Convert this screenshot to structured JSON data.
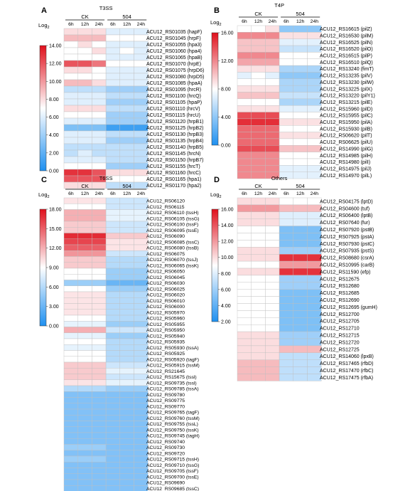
{
  "colors": {
    "high": "#e0101c",
    "mid": "#ffffff",
    "low": "#1e90f0",
    "cell_border": "#bfbfbf"
  },
  "chart_data": [
    {
      "type": "heatmap",
      "panel": "A",
      "title": "T3SS",
      "groups": [
        "CK",
        "504"
      ],
      "columns": [
        "6h",
        "12h",
        "24h",
        "6h",
        "12h",
        "24h"
      ],
      "legend_title": "Log2",
      "scale_min": 0,
      "scale_max": 14,
      "legend_ticks": [
        "14.00",
        "12.00",
        "10.00",
        "8.00",
        "6.00",
        "4.00",
        "2.00",
        "0.00"
      ],
      "rows": [
        "ACU12_RS01035 (hapF)",
        "ACU12_RS01045 (hrpF)",
        "ACU12_RS01055 (hpa3)",
        "ACU12_RS01060 (hpa4)",
        "ACU12_RS01065 (hpaB)",
        "ACU12_RS01070 (hrpE)",
        "ACU12_RS01075 (hrpD6)",
        "ACU12_RS01080 (hrpD5)",
        "ACU12_RS01085 (hpaA)",
        "ACU12_RS01095 (hrcR)",
        "ACU12_RS01100 (hrcQ)",
        "ACU12_RS01105 (hpaP)",
        "ACU12_RS01110 (hrcV)",
        "ACU12_RS01115 (hrcU)",
        "ACU12_RS01120 (hrpB1)",
        "ACU12_RS01125 (hrpB2)",
        "ACU12_RS01130 (hrpB3)",
        "ACU12_RS01135 (hrpB4)",
        "ACU12_RS01140 (hrpB5)",
        "ACU12_RS01145 (hrcN)",
        "ACU12_RS01150 (hrpB7)",
        "ACU12_RS01155 (hrcT)",
        "ACU12_RS01160 (hrcC)",
        "ACU12_RS01165 (hpa1)",
        "ACU12_RS01170 (hpa2)"
      ],
      "values": [
        [
          8,
          8,
          8,
          6,
          6,
          6
        ],
        [
          9,
          9,
          9,
          7,
          7,
          7
        ],
        [
          7,
          8,
          7,
          6,
          6,
          6
        ],
        [
          7,
          7,
          8,
          6,
          7,
          6
        ],
        [
          7,
          7,
          7,
          6,
          6,
          6
        ],
        [
          12,
          12,
          11,
          7,
          7,
          7
        ],
        [
          8,
          8,
          7,
          6,
          6,
          6
        ],
        [
          7,
          7,
          7,
          6,
          6,
          6
        ],
        [
          9,
          9,
          8,
          6,
          6,
          6
        ],
        [
          5,
          5,
          5,
          4,
          4,
          4
        ],
        [
          6,
          6,
          6,
          5,
          5,
          5
        ],
        [
          6,
          6,
          6,
          4,
          4,
          4
        ],
        [
          8,
          8,
          8,
          5,
          5,
          5
        ],
        [
          7,
          7,
          7,
          4,
          4,
          4
        ],
        [
          6,
          6,
          6,
          4,
          4,
          4
        ],
        [
          3,
          3,
          3,
          1,
          1,
          1
        ],
        [
          6,
          6,
          6,
          5,
          5,
          5
        ],
        [
          6,
          6,
          6,
          4,
          4,
          4
        ],
        [
          5,
          5,
          5,
          5,
          5,
          5
        ],
        [
          5,
          6,
          5,
          5,
          5,
          5
        ],
        [
          6,
          6,
          6,
          5,
          5,
          5
        ],
        [
          7,
          7,
          7,
          4,
          4,
          4
        ],
        [
          13,
          13,
          12,
          8,
          8,
          8
        ],
        [
          12,
          12,
          12,
          7,
          7,
          7
        ],
        [
          8,
          8,
          8,
          5,
          5,
          5
        ]
      ]
    },
    {
      "type": "heatmap",
      "panel": "B",
      "title": "T4P",
      "groups": [
        "CK",
        "504"
      ],
      "columns": [
        "6h",
        "12h",
        "24h",
        "6h",
        "12h",
        "24h"
      ],
      "legend_title": "Log2",
      "scale_min": 0,
      "scale_max": 16,
      "legend_ticks": [
        "16.00",
        "12.00",
        "8.00",
        "4.00",
        "0.00"
      ],
      "rows": [
        "ACU12_RS16615 (pilZ)",
        "ACU12_RS16530 (pilM)",
        "ACU12_RS16525 (pilN)",
        "ACU12_RS16520 (pilO)",
        "ACU12_RS16515 (pilP)",
        "ACU12_RS16510 (pilQ)",
        "ACU12_RS13240 (fimT)",
        "ACU12_RS13235 (pilV)",
        "ACU12_RS13230 (pilW)",
        "ACU12_RS13225 (pilX)",
        "ACU12_RS13220 (pilY1)",
        "ACU12_RS13215 (pilE)",
        "ACU12_RS15960 (pilD)",
        "ACU12_RS15955 (pilC)",
        "ACU12_RS15950 (pilA)",
        "ACU12_RS15930 (pilB)",
        "ACU12_RS06620 (pilT)",
        "ACU12_RS06625 (pilU)",
        "ACU12_RS14990 (pilG)",
        "ACU12_RS14985 (pilH)",
        "ACU12_RS14980 (pilI)",
        "ACU12_RS14975 (pilJ)",
        "ACU12_RS14970 (pilL)"
      ],
      "values": [
        [
          8,
          8,
          9,
          4,
          4,
          4
        ],
        [
          12,
          12,
          12,
          9,
          9,
          9
        ],
        [
          10,
          10,
          10,
          7,
          7,
          7
        ],
        [
          10,
          10,
          10,
          6,
          6,
          6
        ],
        [
          12,
          12,
          12,
          8,
          8,
          8
        ],
        [
          11,
          11,
          11,
          8,
          8,
          8
        ],
        [
          9,
          9,
          9,
          5,
          5,
          5
        ],
        [
          7,
          8,
          7,
          4,
          4,
          4
        ],
        [
          8,
          8,
          8,
          5,
          5,
          5
        ],
        [
          9,
          9,
          9,
          5,
          5,
          5
        ],
        [
          10,
          10,
          10,
          6,
          6,
          6
        ],
        [
          8,
          8,
          8,
          5,
          5,
          5
        ],
        [
          9,
          9,
          9,
          7,
          7,
          7
        ],
        [
          14,
          14,
          14,
          8,
          8,
          8
        ],
        [
          15,
          15,
          15,
          9,
          9,
          9
        ],
        [
          13,
          13,
          13,
          8,
          8,
          8
        ],
        [
          13,
          13,
          13,
          9,
          9,
          9
        ],
        [
          13,
          13,
          13,
          8,
          8,
          8
        ],
        [
          14,
          14,
          14,
          10,
          10,
          10
        ],
        [
          12,
          12,
          12,
          8,
          8,
          8
        ],
        [
          12,
          12,
          12,
          8,
          8,
          8
        ],
        [
          12,
          12,
          12,
          7,
          7,
          7
        ],
        [
          12,
          12,
          12,
          7,
          7,
          7
        ]
      ]
    },
    {
      "type": "heatmap",
      "panel": "C",
      "title": "T6SS",
      "groups": [
        "CK",
        "504"
      ],
      "columns": [
        "6h",
        "12h",
        "24h",
        "6h",
        "12h",
        "24h"
      ],
      "legend_title": "Log2",
      "scale_min": 0,
      "scale_max": 18,
      "legend_ticks": [
        "18.00",
        "15.00",
        "12.00",
        "9.00",
        "6.00",
        "3.00",
        "0.00"
      ],
      "rows": [
        "ACU12_RS06120",
        "ACU12_RS06115",
        "ACU12_RS06110 (tssH)",
        "ACU12_RS06105 (tssG)",
        "ACU12_RS06100 (tssF)",
        "ACU12_RS06095 (tssE)",
        "ACU12_RS06090",
        "ACU12_RS06085 (tssC)",
        "ACU12_RS06080 (tssB)",
        "ACU12_RS06075",
        "ACU12_RS06070 (tssJ)",
        "ACU12_RS06065 (tssK)",
        "ACU12_RS06050",
        "ACU12_RS06045",
        "ACU12_RS06030",
        "ACU12_RS06025",
        "ACU12_RS06020",
        "ACU12_RS06010",
        "ACU12_RS06000",
        "ACU12_RS05970",
        "ACU12_RS05960",
        "ACU12_RS05955",
        "ACU12_RS05950",
        "ACU12_RS05940",
        "ACU12_RS05935",
        "ACU12_RS05930 (tssA)",
        "ACU12_RS05925",
        "ACU12_RS05920 (tagF)",
        "ACU12_RS05915 (tssM)",
        "ACU12_RS21645",
        "ACU12_RS15675 (tssl)",
        "ACU12_RS09735 (tssl)",
        "ACU12_RS09785 (tssA)",
        "ACU12_RS09780",
        "ACU12_RS09775",
        "ACU12_RS09770",
        "ACU12_RS09765 (tagF)",
        "ACU12_RS09760 (tssM)",
        "ACU12_RS09755 (tssL)",
        "ACU12_RS09750 (tssK)",
        "ACU12_RS09745 (tagH)",
        "ACU12_RS09740",
        "ACU12_RS09730",
        "ACU12_RS09720",
        "ACU12_RS09715 (tssH)",
        "ACU12_RS09710 (tssG)",
        "ACU12_RS09705 (tssF)",
        "ACU12_RS09700 (tssE)",
        "ACU12_RS09690",
        "ACU12_RS09685 (tssC)",
        "ACU12_RS09680 (tssB)",
        "ACU12_RS09675"
      ],
      "values": [
        [
          10,
          10,
          10,
          7,
          7,
          7
        ],
        [
          9,
          9,
          9,
          7,
          7,
          7
        ],
        [
          12,
          12,
          12,
          8,
          8,
          8
        ],
        [
          12,
          12,
          12,
          8,
          8,
          8
        ],
        [
          11,
          11,
          11,
          7,
          7,
          7
        ],
        [
          11,
          11,
          11,
          7,
          7,
          7
        ],
        [
          17,
          17,
          17,
          11,
          11,
          11
        ],
        [
          16,
          16,
          16,
          10,
          10,
          10
        ],
        [
          15,
          15,
          15,
          10,
          10,
          10
        ],
        [
          13,
          13,
          13,
          7,
          7,
          7
        ],
        [
          11,
          11,
          11,
          6,
          6,
          6
        ],
        [
          11,
          11,
          11,
          6,
          6,
          6
        ],
        [
          9,
          9,
          9,
          5,
          5,
          5
        ],
        [
          9,
          9,
          9,
          5,
          5,
          5
        ],
        [
          5,
          5,
          5,
          3,
          3,
          3
        ],
        [
          9,
          9,
          9,
          5,
          5,
          5
        ],
        [
          10,
          10,
          10,
          6,
          6,
          6
        ],
        [
          10,
          10,
          10,
          6,
          6,
          6
        ],
        [
          10,
          10,
          10,
          6,
          6,
          6
        ],
        [
          10,
          10,
          10,
          6,
          6,
          6
        ],
        [
          9,
          9,
          9,
          6,
          6,
          6
        ],
        [
          8,
          8,
          8,
          5,
          5,
          5
        ],
        [
          12,
          12,
          12,
          7,
          7,
          7
        ],
        [
          8,
          8,
          8,
          5,
          5,
          5
        ],
        [
          9,
          9,
          9,
          6,
          6,
          6
        ],
        [
          8,
          8,
          8,
          6,
          6,
          6
        ],
        [
          9,
          9,
          9,
          6,
          6,
          6
        ],
        [
          9,
          9,
          9,
          6,
          6,
          6
        ],
        [
          11,
          11,
          11,
          7,
          7,
          7
        ],
        [
          11,
          11,
          11,
          8,
          8,
          8
        ],
        [
          11,
          11,
          11,
          7,
          7,
          7
        ],
        [
          10,
          10,
          10,
          8,
          8,
          8
        ],
        [
          6,
          6,
          6,
          5,
          5,
          5
        ],
        [
          4,
          4,
          4,
          4,
          4,
          4
        ],
        [
          4,
          4,
          4,
          4,
          4,
          4
        ],
        [
          4,
          4,
          4,
          4,
          4,
          4
        ],
        [
          4,
          4,
          4,
          4,
          4,
          4
        ],
        [
          4,
          4,
          4,
          4,
          4,
          4
        ],
        [
          4,
          4,
          4,
          4,
          4,
          4
        ],
        [
          4,
          4,
          4,
          4,
          4,
          4
        ],
        [
          4,
          4,
          4,
          4,
          4,
          4
        ],
        [
          4,
          4,
          4,
          4,
          4,
          4
        ],
        [
          5,
          5,
          5,
          4,
          4,
          4
        ],
        [
          4,
          4,
          4,
          4,
          4,
          4
        ],
        [
          5,
          5,
          5,
          4,
          4,
          4
        ],
        [
          4,
          4,
          4,
          4,
          4,
          4
        ],
        [
          4,
          4,
          4,
          4,
          4,
          4
        ],
        [
          4,
          4,
          4,
          4,
          4,
          4
        ],
        [
          4,
          4,
          4,
          4,
          4,
          4
        ],
        [
          4,
          4,
          4,
          4,
          4,
          4
        ],
        [
          4,
          4,
          4,
          4,
          4,
          4
        ],
        [
          4,
          4,
          4,
          4,
          4,
          4
        ]
      ]
    },
    {
      "type": "heatmap",
      "panel": "D",
      "title": "Others",
      "groups": [
        "CK",
        "504"
      ],
      "columns": [
        "6h",
        "12h",
        "24h",
        "6h",
        "12h",
        "24h"
      ],
      "legend_title": "Log2",
      "scale_min": 2,
      "scale_max": 16,
      "legend_ticks": [
        "16.00",
        "14.00",
        "12.00",
        "10.00",
        "8.00",
        "6.00",
        "4.00",
        "2.00"
      ],
      "rows": [
        "ACU12_RS04175 (lptD)",
        "ACU12_RS04600 (tuf)",
        "ACU12_RS06400 (lptB)",
        "ACU12_RS07640 (fur)",
        "ACU12_RS07920 (pstB)",
        "ACU12_RS07925 (pstA)",
        "ACU12_RS07930 (pstC)",
        "ACU12_RS07935 (pstS)",
        "ACU12_RS08680 (csrA)",
        "ACU12_RS10995 (carB)",
        "ACU12_RS11590 (efp)",
        "ACU12_RS12675",
        "ACU12_RS12680",
        "ACU12_RS12685",
        "ACU12_RS12690",
        "ACU12_RS12695 (gumH)",
        "ACU12_RS12700",
        "ACU12_RS12705",
        "ACU12_RS12710",
        "ACU12_RS12715",
        "ACU12_RS12720",
        "ACU12_RS12725",
        "ACU12_RS14060 (lpxB)",
        "ACU12_RS17465 (rfbD)",
        "ACU12_RS17470 (rfbC)",
        "ACU12_RS17475 (rfbA)"
      ],
      "values": [
        [
          10,
          10,
          10,
          9,
          9,
          9
        ],
        [
          12,
          12,
          12,
          11,
          11,
          11
        ],
        [
          10,
          10,
          10,
          8,
          8,
          8
        ],
        [
          10,
          10,
          10,
          8,
          8,
          8
        ],
        [
          9,
          9,
          9,
          5,
          5,
          5
        ],
        [
          9,
          9,
          9,
          5,
          5,
          5
        ],
        [
          9,
          9,
          9,
          5,
          5,
          5
        ],
        [
          10,
          10,
          10,
          6,
          6,
          6
        ],
        [
          10,
          10,
          10,
          15,
          15,
          15
        ],
        [
          9,
          9,
          9,
          12,
          12,
          12
        ],
        [
          10,
          10,
          10,
          15,
          15,
          15
        ],
        [
          9,
          9,
          9,
          6,
          6,
          6
        ],
        [
          9,
          9,
          9,
          6,
          6,
          6
        ],
        [
          9,
          9,
          9,
          5,
          5,
          5
        ],
        [
          9,
          9,
          9,
          5,
          5,
          5
        ],
        [
          9,
          9,
          9,
          5,
          5,
          5
        ],
        [
          9,
          9,
          9,
          5,
          5,
          5
        ],
        [
          9,
          9,
          9,
          5,
          5,
          5
        ],
        [
          9,
          9,
          9,
          5,
          5,
          5
        ],
        [
          10,
          10,
          10,
          6,
          6,
          6
        ],
        [
          10,
          10,
          10,
          6,
          6,
          6
        ],
        [
          10,
          10,
          10,
          11,
          11,
          11
        ],
        [
          10,
          10,
          10,
          7,
          7,
          7
        ],
        [
          11,
          11,
          11,
          7,
          7,
          7
        ],
        [
          11,
          11,
          11,
          7,
          7,
          7
        ],
        [
          11,
          11,
          11,
          7,
          7,
          7
        ]
      ]
    }
  ]
}
